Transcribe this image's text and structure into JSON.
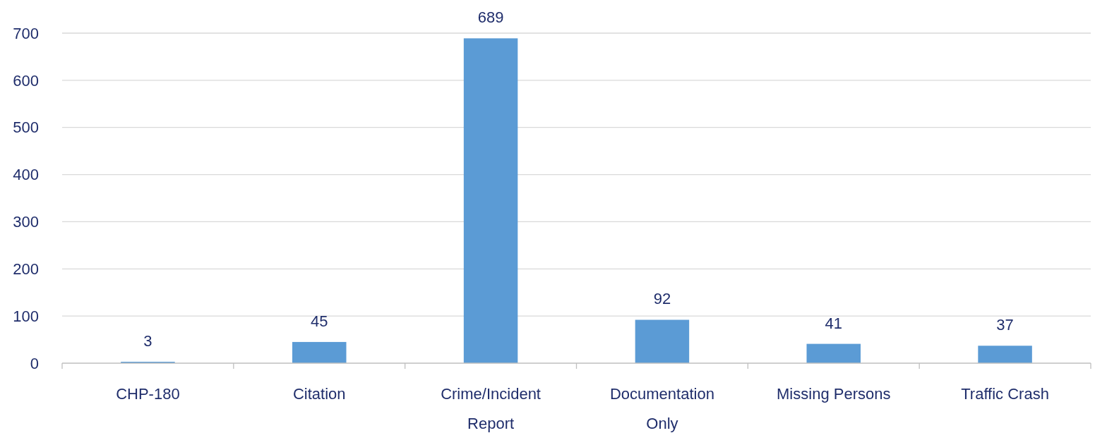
{
  "chart_data": {
    "type": "bar",
    "categories": [
      "CHP-180",
      "Citation",
      "Crime/Incident Report",
      "Documentation Only",
      "Missing Persons",
      "Traffic Crash"
    ],
    "values": [
      3,
      45,
      689,
      92,
      41,
      37
    ],
    "color": "#5b9bd5",
    "ylim": [
      0,
      700
    ],
    "yticks": [
      0,
      100,
      200,
      300,
      400,
      500,
      600,
      700
    ],
    "grid": "y",
    "data_labels": true
  }
}
